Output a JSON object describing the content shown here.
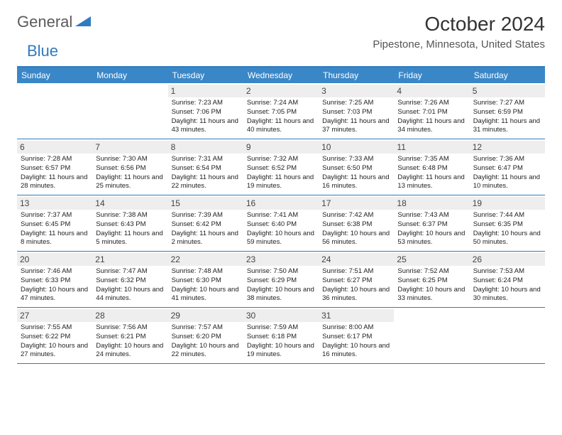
{
  "brand": {
    "part1": "General",
    "part2": "Blue"
  },
  "title": "October 2024",
  "location": "Pipestone, Minnesota, United States",
  "colors": {
    "header_bg": "#3a87c8",
    "accent": "#2f7bbf",
    "daynum_bg": "#eeeeee",
    "text": "#222222"
  },
  "weekdays": [
    "Sunday",
    "Monday",
    "Tuesday",
    "Wednesday",
    "Thursday",
    "Friday",
    "Saturday"
  ],
  "weeks": [
    [
      {
        "n": "",
        "empty": true
      },
      {
        "n": "",
        "empty": true
      },
      {
        "n": "1",
        "sr": "7:23 AM",
        "ss": "7:06 PM",
        "dl": "11 hours and 43 minutes."
      },
      {
        "n": "2",
        "sr": "7:24 AM",
        "ss": "7:05 PM",
        "dl": "11 hours and 40 minutes."
      },
      {
        "n": "3",
        "sr": "7:25 AM",
        "ss": "7:03 PM",
        "dl": "11 hours and 37 minutes."
      },
      {
        "n": "4",
        "sr": "7:26 AM",
        "ss": "7:01 PM",
        "dl": "11 hours and 34 minutes."
      },
      {
        "n": "5",
        "sr": "7:27 AM",
        "ss": "6:59 PM",
        "dl": "11 hours and 31 minutes."
      }
    ],
    [
      {
        "n": "6",
        "sr": "7:28 AM",
        "ss": "6:57 PM",
        "dl": "11 hours and 28 minutes."
      },
      {
        "n": "7",
        "sr": "7:30 AM",
        "ss": "6:56 PM",
        "dl": "11 hours and 25 minutes."
      },
      {
        "n": "8",
        "sr": "7:31 AM",
        "ss": "6:54 PM",
        "dl": "11 hours and 22 minutes."
      },
      {
        "n": "9",
        "sr": "7:32 AM",
        "ss": "6:52 PM",
        "dl": "11 hours and 19 minutes."
      },
      {
        "n": "10",
        "sr": "7:33 AM",
        "ss": "6:50 PM",
        "dl": "11 hours and 16 minutes."
      },
      {
        "n": "11",
        "sr": "7:35 AM",
        "ss": "6:48 PM",
        "dl": "11 hours and 13 minutes."
      },
      {
        "n": "12",
        "sr": "7:36 AM",
        "ss": "6:47 PM",
        "dl": "11 hours and 10 minutes."
      }
    ],
    [
      {
        "n": "13",
        "sr": "7:37 AM",
        "ss": "6:45 PM",
        "dl": "11 hours and 8 minutes."
      },
      {
        "n": "14",
        "sr": "7:38 AM",
        "ss": "6:43 PM",
        "dl": "11 hours and 5 minutes."
      },
      {
        "n": "15",
        "sr": "7:39 AM",
        "ss": "6:42 PM",
        "dl": "11 hours and 2 minutes."
      },
      {
        "n": "16",
        "sr": "7:41 AM",
        "ss": "6:40 PM",
        "dl": "10 hours and 59 minutes."
      },
      {
        "n": "17",
        "sr": "7:42 AM",
        "ss": "6:38 PM",
        "dl": "10 hours and 56 minutes."
      },
      {
        "n": "18",
        "sr": "7:43 AM",
        "ss": "6:37 PM",
        "dl": "10 hours and 53 minutes."
      },
      {
        "n": "19",
        "sr": "7:44 AM",
        "ss": "6:35 PM",
        "dl": "10 hours and 50 minutes."
      }
    ],
    [
      {
        "n": "20",
        "sr": "7:46 AM",
        "ss": "6:33 PM",
        "dl": "10 hours and 47 minutes."
      },
      {
        "n": "21",
        "sr": "7:47 AM",
        "ss": "6:32 PM",
        "dl": "10 hours and 44 minutes."
      },
      {
        "n": "22",
        "sr": "7:48 AM",
        "ss": "6:30 PM",
        "dl": "10 hours and 41 minutes."
      },
      {
        "n": "23",
        "sr": "7:50 AM",
        "ss": "6:29 PM",
        "dl": "10 hours and 38 minutes."
      },
      {
        "n": "24",
        "sr": "7:51 AM",
        "ss": "6:27 PM",
        "dl": "10 hours and 36 minutes."
      },
      {
        "n": "25",
        "sr": "7:52 AM",
        "ss": "6:25 PM",
        "dl": "10 hours and 33 minutes."
      },
      {
        "n": "26",
        "sr": "7:53 AM",
        "ss": "6:24 PM",
        "dl": "10 hours and 30 minutes."
      }
    ],
    [
      {
        "n": "27",
        "sr": "7:55 AM",
        "ss": "6:22 PM",
        "dl": "10 hours and 27 minutes."
      },
      {
        "n": "28",
        "sr": "7:56 AM",
        "ss": "6:21 PM",
        "dl": "10 hours and 24 minutes."
      },
      {
        "n": "29",
        "sr": "7:57 AM",
        "ss": "6:20 PM",
        "dl": "10 hours and 22 minutes."
      },
      {
        "n": "30",
        "sr": "7:59 AM",
        "ss": "6:18 PM",
        "dl": "10 hours and 19 minutes."
      },
      {
        "n": "31",
        "sr": "8:00 AM",
        "ss": "6:17 PM",
        "dl": "10 hours and 16 minutes."
      },
      {
        "n": "",
        "empty": true
      },
      {
        "n": "",
        "empty": true
      }
    ]
  ],
  "labels": {
    "sunrise": "Sunrise:",
    "sunset": "Sunset:",
    "daylight": "Daylight:"
  }
}
